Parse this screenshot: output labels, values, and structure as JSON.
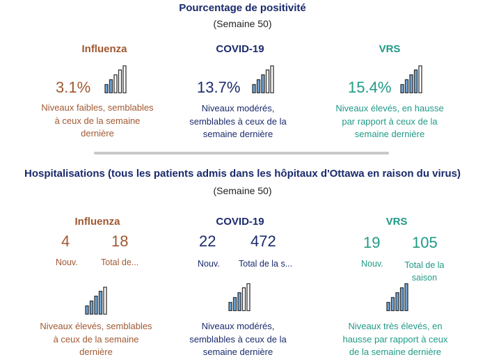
{
  "positivity": {
    "title": "Pourcentage de positivité",
    "week": "(Semaine 50)",
    "influenza": {
      "label": "Influenza",
      "value": "3.1%",
      "level": 2,
      "desc": [
        "Niveaux faibles, semblables",
        "à ceux de la semaine",
        "dernière"
      ]
    },
    "covid": {
      "label": "COVID-19",
      "value": "13.7%",
      "level": 3,
      "desc": [
        "Niveaux modérés,",
        "semblables à ceux de la",
        "semaine dernière"
      ]
    },
    "rsv": {
      "label": "VRS",
      "value": "15.4%",
      "level": 4,
      "desc": [
        "Niveaux élevés, en hausse",
        "par rapport à ceux de la",
        "semaine dernière"
      ]
    }
  },
  "hospital": {
    "title": "Hospitalisations (tous les patients admis dans les hôpitaux d'Ottawa en raison du virus)",
    "week": "(Semaine 50)",
    "influenza": {
      "label": "Influenza",
      "new_value": "4",
      "new_label": "Nouv.",
      "total_value": "18",
      "total_label": "Total de...",
      "level": 4,
      "desc": [
        "Niveaux élevés, semblables",
        "à ceux de la semaine",
        "dernière"
      ]
    },
    "covid": {
      "label": "COVID-19",
      "new_value": "22",
      "new_label": "Nouv.",
      "total_value": "472",
      "total_label": "Total de la s...",
      "level": 3,
      "desc": [
        "Niveaux modérés,",
        "semblables à ceux de la",
        "semaine dernière"
      ]
    },
    "rsv": {
      "label": "VRS",
      "new_value": "19",
      "new_label": "Nouv.",
      "total_value": "105",
      "total_label": [
        "Total de la",
        "saison"
      ],
      "level": 5,
      "desc": [
        "Niveaux très élevés, en",
        "hausse par rapport à ceux",
        "de la semaine dernière"
      ]
    }
  },
  "colors": {
    "flu": "#a15830",
    "covid": "#1a2a6c",
    "rsv": "#1f9a86",
    "bar_fill": "#6fa8dc",
    "bar_stroke": "#333333"
  },
  "icons": {
    "level_bars": "signal-bars-icon"
  }
}
